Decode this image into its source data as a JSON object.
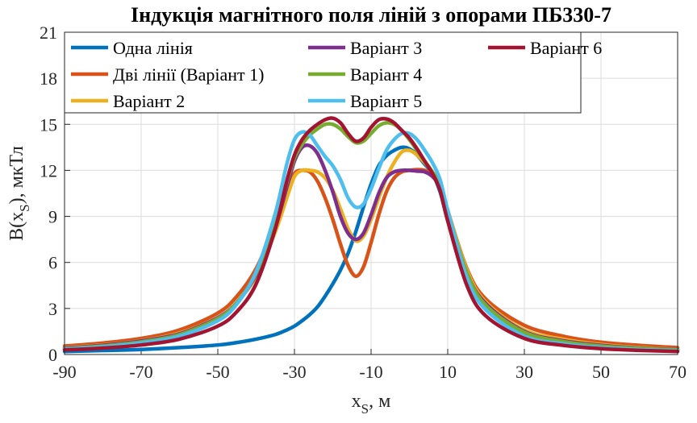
{
  "chart_data": {
    "type": "line",
    "title": "Індукція магнітного поля ліній з опорами ПБ330-7",
    "xlabel": {
      "main": "x",
      "sub": "S",
      "rest": ", м"
    },
    "ylabel": {
      "main": "B(x",
      "sub": "S",
      "rest": "), мкТл"
    },
    "xlim": [
      -90,
      70
    ],
    "ylim": [
      0,
      21
    ],
    "xticks": [
      -90,
      -70,
      -50,
      -30,
      -10,
      10,
      30,
      50,
      70
    ],
    "yticks": [
      0,
      3,
      6,
      9,
      12,
      15,
      18,
      21
    ],
    "grid": true,
    "legend_position": "top-left",
    "x": [
      -90,
      -80,
      -70,
      -60,
      -50,
      -45,
      -40,
      -35,
      -32,
      -30,
      -28,
      -26,
      -24,
      -22,
      -20,
      -18,
      -16,
      -14,
      -12,
      -10,
      -8,
      -6,
      -4,
      -2,
      0,
      2,
      4,
      6,
      8,
      10,
      15,
      20,
      30,
      40,
      50,
      60,
      70
    ],
    "series": [
      {
        "name": "Одна лінія",
        "color": "#0072BD",
        "values": [
          0.2,
          0.26,
          0.33,
          0.45,
          0.62,
          0.78,
          1.0,
          1.3,
          1.6,
          1.85,
          2.2,
          2.6,
          3.1,
          3.8,
          4.6,
          5.5,
          6.6,
          8.0,
          9.6,
          11.1,
          12.3,
          12.95,
          13.3,
          13.5,
          13.4,
          13.0,
          12.4,
          11.8,
          10.6,
          8.8,
          5.0,
          3.0,
          1.4,
          0.85,
          0.55,
          0.4,
          0.3
        ]
      },
      {
        "name": "Дві лінії (Варіант 1)",
        "color": "#D95319",
        "values": [
          0.55,
          0.75,
          1.05,
          1.6,
          2.7,
          3.8,
          5.6,
          8.5,
          10.6,
          11.8,
          12.0,
          11.9,
          11.3,
          10.2,
          8.8,
          7.2,
          5.8,
          5.1,
          5.7,
          7.3,
          9.1,
          10.6,
          11.5,
          11.9,
          12.0,
          12.05,
          12.0,
          11.7,
          11.1,
          9.4,
          5.6,
          3.6,
          1.9,
          1.2,
          0.8,
          0.6,
          0.45
        ]
      },
      {
        "name": "Варіант 2",
        "color": "#EDB120",
        "values": [
          0.45,
          0.62,
          0.9,
          1.4,
          2.4,
          3.4,
          5.1,
          8.0,
          10.2,
          11.6,
          12.0,
          12.0,
          11.9,
          11.5,
          10.7,
          9.5,
          8.2,
          7.4,
          7.7,
          8.8,
          10.2,
          11.5,
          12.5,
          13.2,
          13.3,
          13.0,
          12.5,
          11.9,
          11.2,
          9.4,
          5.5,
          3.4,
          1.6,
          1.0,
          0.65,
          0.45,
          0.33
        ]
      },
      {
        "name": "Варіант 3",
        "color": "#7E2F8E",
        "values": [
          0.42,
          0.6,
          0.88,
          1.35,
          2.4,
          3.4,
          5.2,
          8.3,
          10.9,
          12.6,
          13.5,
          13.6,
          13.1,
          12.0,
          10.6,
          9.0,
          7.9,
          7.5,
          7.9,
          9.1,
          10.5,
          11.5,
          11.9,
          12.0,
          12.0,
          11.95,
          11.9,
          11.6,
          10.9,
          9.2,
          5.3,
          3.3,
          1.5,
          0.9,
          0.6,
          0.42,
          0.32
        ]
      },
      {
        "name": "Варіант 4",
        "color": "#77AC30",
        "values": [
          0.38,
          0.55,
          0.82,
          1.3,
          2.35,
          3.4,
          5.3,
          8.6,
          11.2,
          12.8,
          13.7,
          14.3,
          14.7,
          15.0,
          15.0,
          14.7,
          14.2,
          13.8,
          13.9,
          14.4,
          14.9,
          15.1,
          15.0,
          14.6,
          14.0,
          13.3,
          12.6,
          11.9,
          11.0,
          9.3,
          5.3,
          3.2,
          1.45,
          0.85,
          0.55,
          0.4,
          0.3
        ]
      },
      {
        "name": "Варіант 5",
        "color": "#4DBEEE",
        "values": [
          0.35,
          0.5,
          0.75,
          1.2,
          2.2,
          3.3,
          5.4,
          9.2,
          12.4,
          14.0,
          14.5,
          14.3,
          13.6,
          12.9,
          12.3,
          11.4,
          10.2,
          9.6,
          9.8,
          10.8,
          12.1,
          13.3,
          14.0,
          14.4,
          14.4,
          14.0,
          13.3,
          12.5,
          11.4,
          9.4,
          5.0,
          2.9,
          1.2,
          0.7,
          0.45,
          0.32,
          0.24
        ]
      },
      {
        "name": "Варіант 6",
        "color": "#A2142F",
        "values": [
          0.3,
          0.42,
          0.62,
          1.0,
          1.85,
          2.8,
          4.6,
          8.2,
          11.3,
          13.0,
          14.0,
          14.6,
          15.0,
          15.3,
          15.4,
          15.1,
          14.4,
          13.9,
          14.1,
          14.8,
          15.3,
          15.35,
          15.1,
          14.6,
          14.1,
          13.4,
          12.6,
          11.8,
          10.7,
          8.7,
          4.5,
          2.5,
          1.05,
          0.6,
          0.38,
          0.27,
          0.2
        ]
      }
    ]
  }
}
